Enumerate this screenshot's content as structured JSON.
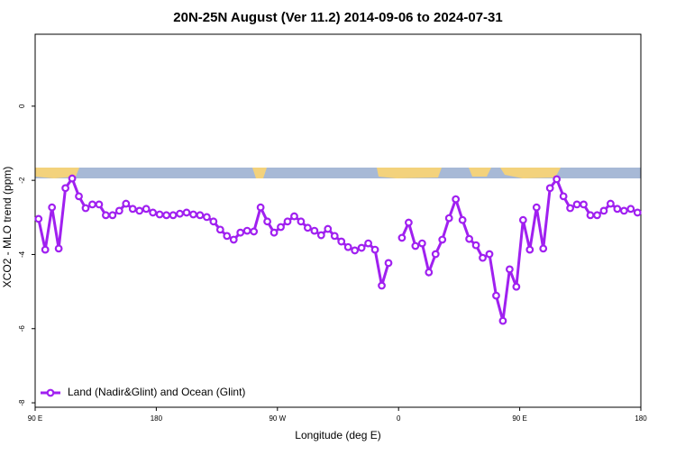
{
  "chart_data": {
    "type": "line",
    "title": "20N-25N August (Ver 11.2)   2014-09-06 to 2024-07-31",
    "x_label": "Longitude (deg E)",
    "y_label": "XCO2 - MLO trend (ppm)",
    "xlim": [
      90,
      540
    ],
    "ylim": [
      -8.12,
      1.94
    ],
    "xticks": [
      {
        "value": 90,
        "label": "90 E"
      },
      180,
      {
        "value": 270,
        "label": "90 W"
      },
      {
        "value": 360,
        "label": "0"
      },
      {
        "value": 450,
        "label": "90 E"
      },
      {
        "value": 540,
        "label": "180"
      }
    ],
    "yticks": [
      0,
      -2,
      -4,
      -6,
      -8
    ],
    "legend": "bottom-left",
    "x": [
      92.5,
      97.5,
      102.5,
      107.5,
      112.5,
      117.5,
      122.5,
      127.5,
      132.5,
      137.5,
      142.5,
      147.5,
      152.5,
      157.5,
      162.5,
      167.5,
      172.5,
      177.5,
      182.5,
      187.5,
      192.5,
      197.5,
      202.5,
      207.5,
      212.5,
      217.5,
      222.5,
      227.5,
      232.5,
      237.5,
      242.5,
      247.5,
      252.5,
      257.5,
      262.5,
      267.5,
      272.5,
      277.5,
      282.5,
      287.5,
      292.5,
      297.5,
      302.5,
      307.5,
      312.5,
      317.5,
      322.5,
      327.5,
      332.5,
      337.5,
      342.5,
      347.5,
      352.5,
      357.5,
      362.5,
      367.5,
      372.5,
      377.5,
      382.5,
      387.5,
      392.5,
      397.5,
      402.5,
      407.5,
      412.5,
      417.5,
      422.5,
      427.5,
      432.5,
      437.5,
      442.5,
      447.5,
      452.5,
      457.5,
      462.5,
      467.5,
      472.5,
      477.5,
      482.5,
      487.5,
      492.5,
      497.5,
      502.5,
      507.5,
      512.5,
      517.5,
      522.5,
      527.5,
      532.5,
      537.5
    ],
    "series": [
      {
        "name": "Land (Nadir&Glint) and Ocean (Glint)",
        "color": "#a020f0",
        "values": [
          -3.04,
          -3.87,
          -2.73,
          -3.84,
          -2.21,
          -1.95,
          -2.43,
          -2.75,
          -2.65,
          -2.65,
          -2.94,
          -2.94,
          -2.82,
          -2.63,
          -2.77,
          -2.82,
          -2.77,
          -2.87,
          -2.92,
          -2.94,
          -2.94,
          -2.9,
          -2.87,
          -2.92,
          -2.94,
          -2.99,
          -3.11,
          -3.33,
          -3.5,
          -3.6,
          -3.41,
          -3.36,
          -3.38,
          -2.73,
          -3.11,
          -3.41,
          -3.26,
          -3.11,
          -2.97,
          -3.11,
          -3.28,
          -3.36,
          -3.48,
          -3.31,
          -3.5,
          -3.65,
          -3.8,
          -3.89,
          -3.82,
          -3.7,
          -3.87,
          -4.84,
          -4.23,
          null,
          -3.55,
          -3.14,
          -3.77,
          -3.7,
          -4.48,
          -3.99,
          -3.6,
          -3.02,
          -2.51,
          -3.07,
          -3.58,
          -3.75,
          -4.09,
          -3.99,
          -5.11,
          -5.79,
          -4.4,
          -4.87,
          -3.07,
          -3.87,
          -2.73,
          -3.84,
          -2.21,
          -1.97,
          -2.43,
          -2.75,
          -2.65,
          -2.65,
          -2.94,
          -2.94,
          -2.82,
          -2.63,
          -2.77,
          -2.82,
          -2.77,
          -2.87
        ]
      }
    ]
  }
}
